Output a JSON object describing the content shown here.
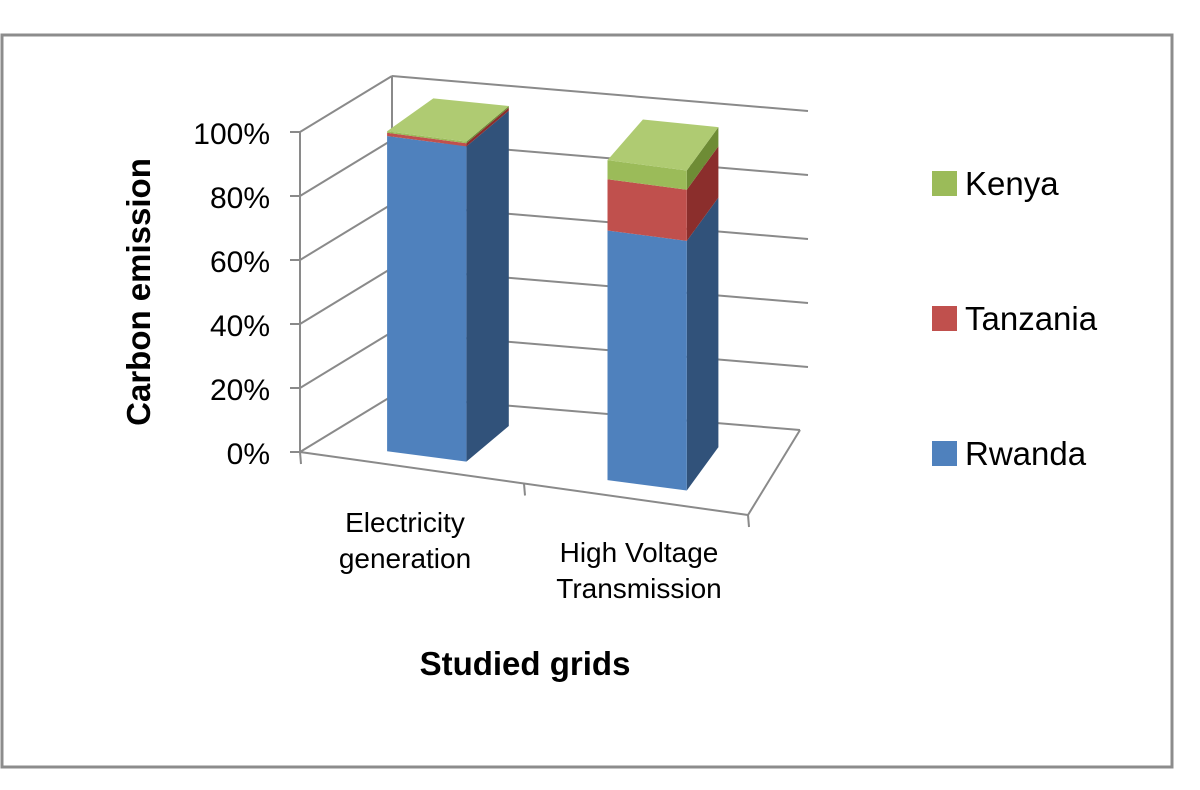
{
  "chart_data": {
    "type": "bar",
    "stacked": true,
    "percent_stacked": true,
    "three_d": true,
    "title": "",
    "xlabel": "Studied grids",
    "ylabel": "Carbon emission",
    "categories": [
      [
        "Electricity",
        "generation"
      ],
      [
        "High Voltage",
        "Transmission"
      ]
    ],
    "series": [
      {
        "name": "Rwanda",
        "values": [
          98.5,
          78
        ],
        "color": "#4F81BD",
        "side_color": "#31527A",
        "top_color": "#6F97CC"
      },
      {
        "name": "Tanzania",
        "values": [
          1.0,
          16
        ],
        "color": "#C0504D",
        "side_color": "#8B2E2C",
        "top_color": "#D26C69"
      },
      {
        "name": "Kenya",
        "values": [
          0.5,
          6
        ],
        "color": "#9BBB59",
        "side_color": "#6E8C35",
        "top_color": "#AFCB72"
      }
    ],
    "y_ticks": [
      "0%",
      "20%",
      "40%",
      "60%",
      "80%",
      "100%"
    ],
    "ylim": [
      0,
      100
    ],
    "grid": true,
    "legend_position": "right",
    "legend_order": [
      "Kenya",
      "Tanzania",
      "Rwanda"
    ]
  }
}
